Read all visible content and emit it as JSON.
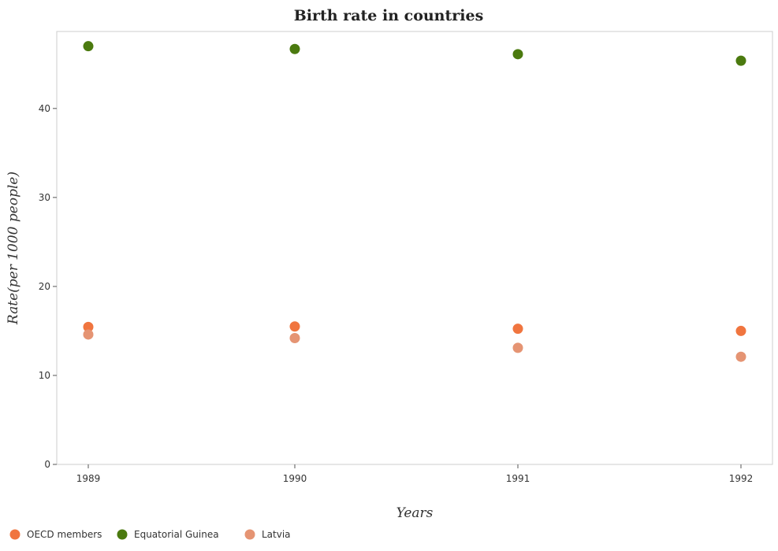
{
  "chart_data": {
    "type": "scatter",
    "title": "Birth rate in countries",
    "xlabel": "Years",
    "ylabel": "Rate(per 1000 people)",
    "categories": [
      "1989",
      "1990",
      "1991",
      "1992"
    ],
    "yticks": [
      "0",
      "10",
      "20",
      "30",
      "40"
    ],
    "ylim": [
      0,
      48.5
    ],
    "grid": false,
    "legend_position": "bottom-left",
    "series": [
      {
        "name": "OECD members",
        "color": "#f0753f",
        "values": [
          15.45,
          15.5,
          15.25,
          15.0
        ]
      },
      {
        "name": "Equatorial Guinea",
        "color": "#4b7a0f",
        "values": [
          47.0,
          46.68,
          46.1,
          45.37
        ]
      },
      {
        "name": "Latvia",
        "color": "#e59473",
        "values": [
          14.6,
          14.2,
          13.1,
          12.1
        ]
      }
    ]
  }
}
